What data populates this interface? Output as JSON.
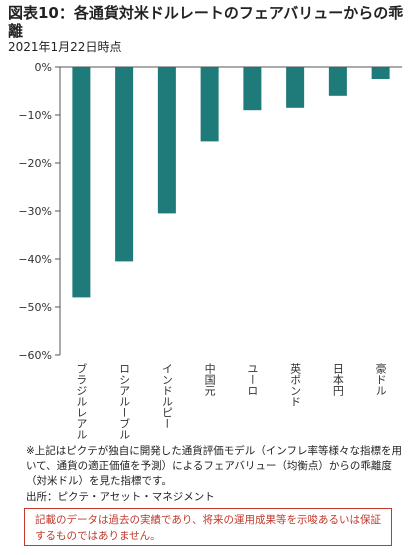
{
  "header": {
    "title": "図表10：各通貨対米ドルレートのフェアバリューからの乖離",
    "date": "2021年1月22日時点"
  },
  "chart_data": {
    "type": "bar",
    "categories": [
      "ブラジルレアル",
      "ロシアルーブル",
      "インドルピー",
      "中国元",
      "ユーロ",
      "英ポンド",
      "日本円",
      "豪ドル"
    ],
    "values": [
      -48,
      -40.5,
      -30.5,
      -15.5,
      -9,
      -8.5,
      -6,
      -2.5
    ],
    "ylim": [
      -60,
      0
    ],
    "yticks": [
      0,
      -10,
      -20,
      -30,
      -40,
      -50,
      -60
    ],
    "ytick_labels": [
      "0%",
      "−10%",
      "−20%",
      "−30%",
      "−40%",
      "−50%",
      "−60%"
    ],
    "bar_color": "#1f7a7a",
    "grid": false
  },
  "footer": {
    "note": "※上記はピクテが独自に開発した通貨評価モデル（インフレ率等様々な指標を用いて、通貨の適正価値を予測）によるフェアバリュー（均衡点）からの乖離度（対米ドル）を見た指標です。",
    "source": "出所：ピクテ・アセット・マネジメント",
    "disclaimer": "記載のデータは過去の実績であり、将来の運用成果等を示唆あるいは保証するものではありません。"
  }
}
